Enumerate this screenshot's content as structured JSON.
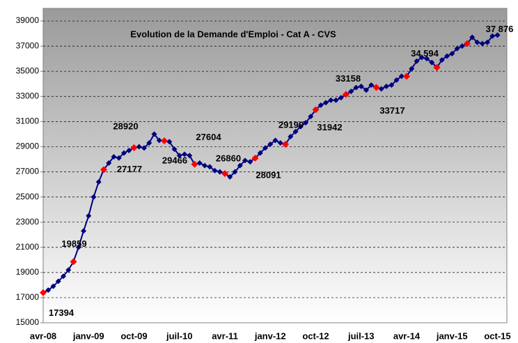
{
  "chart_data": {
    "type": "line",
    "title": "Evolution de la Demande d'Emploi - Cat A - CVS",
    "categories": [
      "avr-08",
      null,
      null,
      null,
      null,
      null,
      null,
      null,
      null,
      "janv-09",
      null,
      null,
      null,
      null,
      null,
      null,
      null,
      null,
      "oct-09",
      null,
      null,
      null,
      null,
      null,
      null,
      null,
      null,
      "juil-10",
      null,
      null,
      null,
      null,
      null,
      null,
      null,
      null,
      "avr-11",
      null,
      null,
      null,
      null,
      null,
      null,
      null,
      null,
      "janv-12",
      null,
      null,
      null,
      null,
      null,
      null,
      null,
      null,
      "oct-12",
      null,
      null,
      null,
      null,
      null,
      null,
      null,
      null,
      "juil-13",
      null,
      null,
      null,
      null,
      null,
      null,
      null,
      null,
      "avr-14",
      null,
      null,
      null,
      null,
      null,
      null,
      null,
      null,
      "janv-15",
      null,
      null,
      null,
      null,
      null,
      null,
      null,
      null,
      "oct-15"
    ],
    "series": [
      {
        "color": "#000080",
        "highlight_color": "#ff0000",
        "highlight_indices": [
          0,
          6,
          12,
          18,
          24,
          30,
          36,
          42,
          48,
          54,
          60,
          66,
          72,
          78,
          84
        ],
        "values": [
          17394,
          17600,
          17900,
          18300,
          18700,
          19200,
          19859,
          21000,
          22300,
          23500,
          25000,
          26200,
          27177,
          27700,
          28200,
          28100,
          28500,
          28700,
          28920,
          29000,
          28900,
          29300,
          30000,
          29500,
          29466,
          29400,
          28800,
          28300,
          28400,
          28300,
          27604,
          27700,
          27500,
          27400,
          27100,
          27000,
          26860,
          26600,
          27000,
          27500,
          27900,
          27800,
          28091,
          28500,
          28900,
          29200,
          29500,
          29300,
          29190,
          29800,
          30200,
          30600,
          30900,
          31400,
          31942,
          32300,
          32500,
          32700,
          32700,
          32900,
          33158,
          33400,
          33700,
          33800,
          33500,
          33900,
          33717,
          33600,
          33800,
          33900,
          34300,
          34600,
          34594,
          35200,
          35800,
          36100,
          36000,
          35700,
          35300,
          35900,
          36200,
          36400,
          36800,
          37000,
          37200,
          37700,
          37300,
          37200,
          37300,
          37800,
          37876
        ]
      }
    ],
    "annotations": [
      {
        "index": 0,
        "text": "17394"
      },
      {
        "index": 6,
        "text": "19859"
      },
      {
        "index": 12,
        "text": "27177"
      },
      {
        "index": 18,
        "text": "28920"
      },
      {
        "index": 24,
        "text": "29466"
      },
      {
        "index": 30,
        "text": "27604"
      },
      {
        "index": 36,
        "text": "26860"
      },
      {
        "index": 42,
        "text": "28091"
      },
      {
        "index": 48,
        "text": "29190"
      },
      {
        "index": 54,
        "text": "31942"
      },
      {
        "index": 60,
        "text": "33158"
      },
      {
        "index": 66,
        "text": "33717"
      },
      {
        "index": 72,
        "text": "34 594"
      },
      {
        "index": 90,
        "text": "37 876"
      }
    ],
    "ylim": [
      15000,
      40000
    ],
    "yticks": [
      15000,
      17000,
      19000,
      21000,
      23000,
      25000,
      27000,
      29000,
      31000,
      33000,
      35000,
      37000,
      39000
    ],
    "grid": true
  }
}
